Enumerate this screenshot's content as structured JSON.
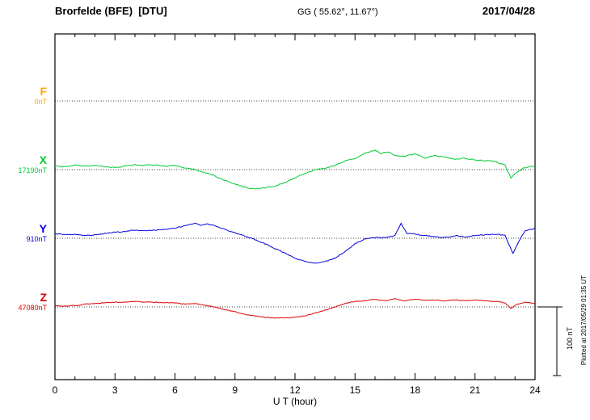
{
  "header": {
    "station_title": "Brorfelde (BFE)  [DTU]",
    "coordinates": "GG ( 55.62°, 11.67°)",
    "date": "2017/04/28"
  },
  "footer_caption": "Plotted at 2017/05/29 01:35 UT",
  "chart_data": {
    "type": "line",
    "title": "Brorfelde (BFE) [DTU] magnetogram 2017/04/28",
    "xlabel": "U T (hour)",
    "ylabel": "",
    "x_range": [
      0,
      24
    ],
    "x_ticks": [
      0,
      3,
      6,
      9,
      12,
      15,
      18,
      21,
      24
    ],
    "grid": "horizontal-dotted-baselines",
    "scale_bar": {
      "label": "100 nT",
      "nanotesla": 100
    },
    "series": [
      {
        "name": "F",
        "color": "#ffaa00",
        "baseline_label": "0nT",
        "baseline_value": 0,
        "points": []
      },
      {
        "name": "X",
        "color": "#00cc33",
        "baseline_label": "17190nT",
        "baseline_value": 17190,
        "points": [
          [
            0,
            17196
          ],
          [
            0.5,
            17194
          ],
          [
            1,
            17197
          ],
          [
            1.5,
            17195
          ],
          [
            2,
            17196
          ],
          [
            2.5,
            17194
          ],
          [
            3,
            17193
          ],
          [
            3.5,
            17195
          ],
          [
            4,
            17197
          ],
          [
            4.5,
            17196
          ],
          [
            5,
            17197
          ],
          [
            5.5,
            17195
          ],
          [
            6,
            17196
          ],
          [
            6.5,
            17192
          ],
          [
            7,
            17190
          ],
          [
            7.5,
            17186
          ],
          [
            8,
            17181
          ],
          [
            8.5,
            17174
          ],
          [
            9,
            17169
          ],
          [
            9.5,
            17164
          ],
          [
            10,
            17162
          ],
          [
            10.5,
            17163
          ],
          [
            11,
            17166
          ],
          [
            11.5,
            17171
          ],
          [
            12,
            17178
          ],
          [
            12.5,
            17184
          ],
          [
            13,
            17190
          ],
          [
            13.5,
            17192
          ],
          [
            14,
            17196
          ],
          [
            14.5,
            17202
          ],
          [
            15,
            17206
          ],
          [
            15.5,
            17214
          ],
          [
            16,
            17218
          ],
          [
            16.3,
            17213
          ],
          [
            16.6,
            17216
          ],
          [
            17,
            17211
          ],
          [
            17.5,
            17209
          ],
          [
            18,
            17213
          ],
          [
            18.5,
            17207
          ],
          [
            19,
            17210
          ],
          [
            19.5,
            17208
          ],
          [
            20,
            17205
          ],
          [
            20.5,
            17207
          ],
          [
            21,
            17204
          ],
          [
            21.5,
            17203
          ],
          [
            22,
            17202
          ],
          [
            22.5,
            17196
          ],
          [
            22.8,
            17178
          ],
          [
            23.1,
            17186
          ],
          [
            23.5,
            17193
          ],
          [
            24,
            17195
          ]
        ]
      },
      {
        "name": "Y",
        "color": "#0000dd",
        "baseline_label": "910nT",
        "baseline_value": 910,
        "points": [
          [
            0,
            917
          ],
          [
            0.5,
            915
          ],
          [
            1,
            916
          ],
          [
            1.5,
            914
          ],
          [
            2,
            915
          ],
          [
            2.5,
            917
          ],
          [
            3,
            919
          ],
          [
            3.5,
            920
          ],
          [
            4,
            922
          ],
          [
            4.5,
            921
          ],
          [
            5,
            922
          ],
          [
            5.5,
            923
          ],
          [
            6,
            925
          ],
          [
            6.5,
            928
          ],
          [
            7,
            932
          ],
          [
            7.3,
            929
          ],
          [
            7.6,
            931
          ],
          [
            8,
            928
          ],
          [
            8.5,
            923
          ],
          [
            9,
            918
          ],
          [
            9.5,
            913
          ],
          [
            10,
            908
          ],
          [
            10.5,
            902
          ],
          [
            11,
            895
          ],
          [
            11.5,
            888
          ],
          [
            12,
            881
          ],
          [
            12.5,
            876
          ],
          [
            13,
            874
          ],
          [
            13.5,
            876
          ],
          [
            14,
            881
          ],
          [
            14.5,
            890
          ],
          [
            15,
            902
          ],
          [
            15.5,
            909
          ],
          [
            16,
            911
          ],
          [
            16.5,
            911
          ],
          [
            17,
            914
          ],
          [
            17.3,
            932
          ],
          [
            17.6,
            917
          ],
          [
            18,
            916
          ],
          [
            18.5,
            914
          ],
          [
            19,
            912
          ],
          [
            19.5,
            911
          ],
          [
            20,
            914
          ],
          [
            20.5,
            912
          ],
          [
            21,
            914
          ],
          [
            21.5,
            915
          ],
          [
            22,
            916
          ],
          [
            22.5,
            914
          ],
          [
            22.9,
            888
          ],
          [
            23.2,
            906
          ],
          [
            23.5,
            921
          ],
          [
            24,
            924
          ]
        ]
      },
      {
        "name": "Z",
        "color": "#dd0000",
        "baseline_label": "47080nT",
        "baseline_value": 47080,
        "points": [
          [
            0,
            47082
          ],
          [
            0.5,
            47081
          ],
          [
            1,
            47082
          ],
          [
            1.5,
            47084
          ],
          [
            2,
            47085
          ],
          [
            2.5,
            47086
          ],
          [
            3,
            47087
          ],
          [
            3.5,
            47087
          ],
          [
            4,
            47088
          ],
          [
            4.5,
            47087
          ],
          [
            5,
            47087
          ],
          [
            5.5,
            47086
          ],
          [
            6,
            47086
          ],
          [
            6.5,
            47084
          ],
          [
            7,
            47085
          ],
          [
            7.5,
            47082
          ],
          [
            8,
            47080
          ],
          [
            8.5,
            47076
          ],
          [
            9,
            47073
          ],
          [
            9.5,
            47069
          ],
          [
            10,
            47067
          ],
          [
            10.5,
            47065
          ],
          [
            11,
            47064
          ],
          [
            11.5,
            47064
          ],
          [
            12,
            47065
          ],
          [
            12.5,
            47067
          ],
          [
            13,
            47071
          ],
          [
            13.5,
            47075
          ],
          [
            14,
            47080
          ],
          [
            14.5,
            47085
          ],
          [
            15,
            47088
          ],
          [
            15.5,
            47089
          ],
          [
            16,
            47091
          ],
          [
            16.5,
            47089
          ],
          [
            17,
            47092
          ],
          [
            17.5,
            47089
          ],
          [
            18,
            47091
          ],
          [
            18.5,
            47090
          ],
          [
            19,
            47090
          ],
          [
            19.5,
            47089
          ],
          [
            20,
            47090
          ],
          [
            20.5,
            47089
          ],
          [
            21,
            47090
          ],
          [
            21.5,
            47089
          ],
          [
            22,
            47088
          ],
          [
            22.5,
            47086
          ],
          [
            22.8,
            47078
          ],
          [
            23.1,
            47084
          ],
          [
            23.5,
            47087
          ],
          [
            24,
            47085
          ]
        ]
      }
    ]
  }
}
